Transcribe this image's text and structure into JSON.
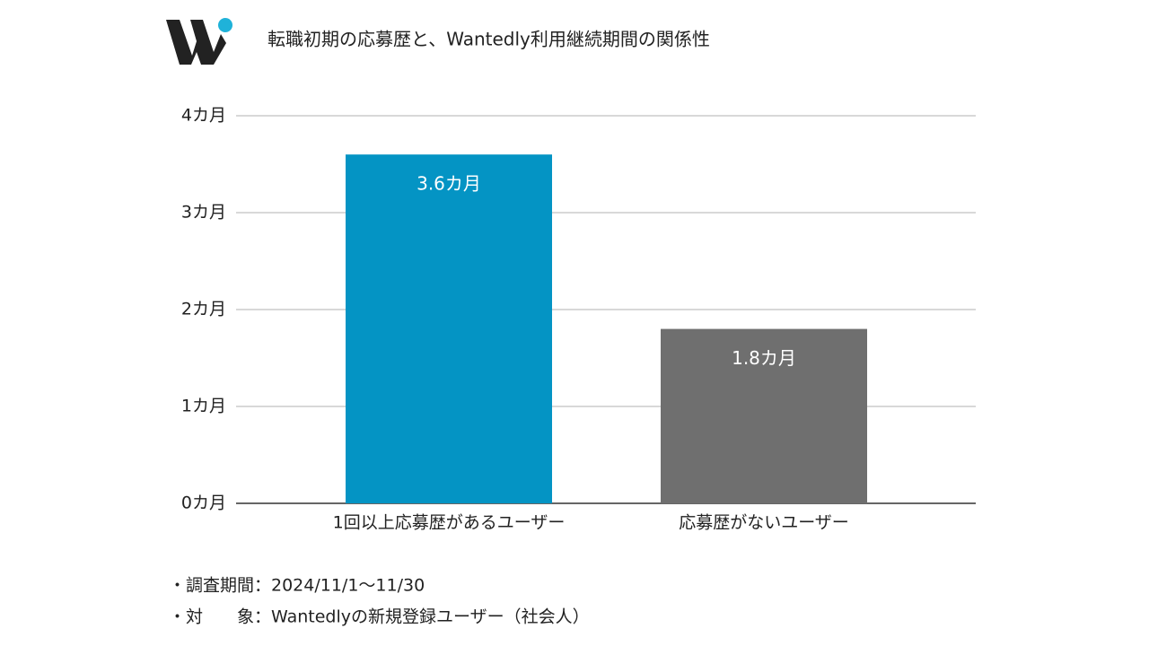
{
  "chart_data": {
    "type": "bar",
    "title": "転職初期の応募歴と、Wantedly利用継続期間の関係性",
    "categories": [
      "1回以上応募歴があるユーザー",
      "応募歴がないユーザー"
    ],
    "values": [
      3.6,
      1.8
    ],
    "value_labels": [
      "3.6カ月",
      "1.8カ月"
    ],
    "colors": [
      "#0494c4",
      "#6f6f6f"
    ],
    "ylim": [
      0,
      4
    ],
    "yticks": [
      {
        "value": 0,
        "label": "0カ月"
      },
      {
        "value": 1,
        "label": "1カ月"
      },
      {
        "value": 2,
        "label": "2カ月"
      },
      {
        "value": 3,
        "label": "3カ月"
      },
      {
        "value": 4,
        "label": "4カ月"
      }
    ],
    "grid": true,
    "notes": [
      "・調査期間：2024/11/1〜11/30",
      "・対　　象：Wantedlyの新規登録ユーザー（社会人）"
    ]
  }
}
